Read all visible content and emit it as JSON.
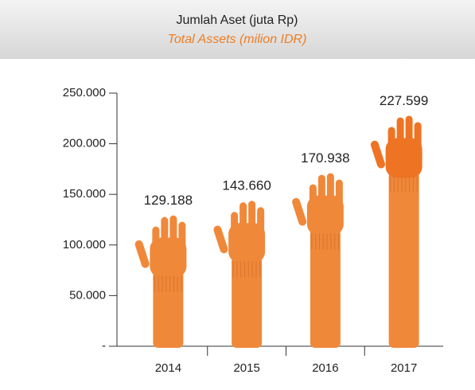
{
  "chart_data": {
    "type": "bar",
    "title": "Jumlah Aset (juta Rp)",
    "subtitle": "Total Assets (milion IDR)",
    "categories": [
      "2014",
      "2015",
      "2016",
      "2017"
    ],
    "values": [
      129188,
      143660,
      170938,
      227599
    ],
    "value_labels": [
      "129.188",
      "143.660",
      "170.938",
      "227.599"
    ],
    "color": "#f0883a",
    "ylim": [
      0,
      250000
    ],
    "yticks": [
      {
        "value": 0,
        "label": "-"
      },
      {
        "value": 50000,
        "label": "50.000"
      },
      {
        "value": 100000,
        "label": "100.000"
      },
      {
        "value": 150000,
        "label": "150.000"
      },
      {
        "value": 200000,
        "label": "200.000"
      },
      {
        "value": 250000,
        "label": "250.000"
      }
    ]
  }
}
